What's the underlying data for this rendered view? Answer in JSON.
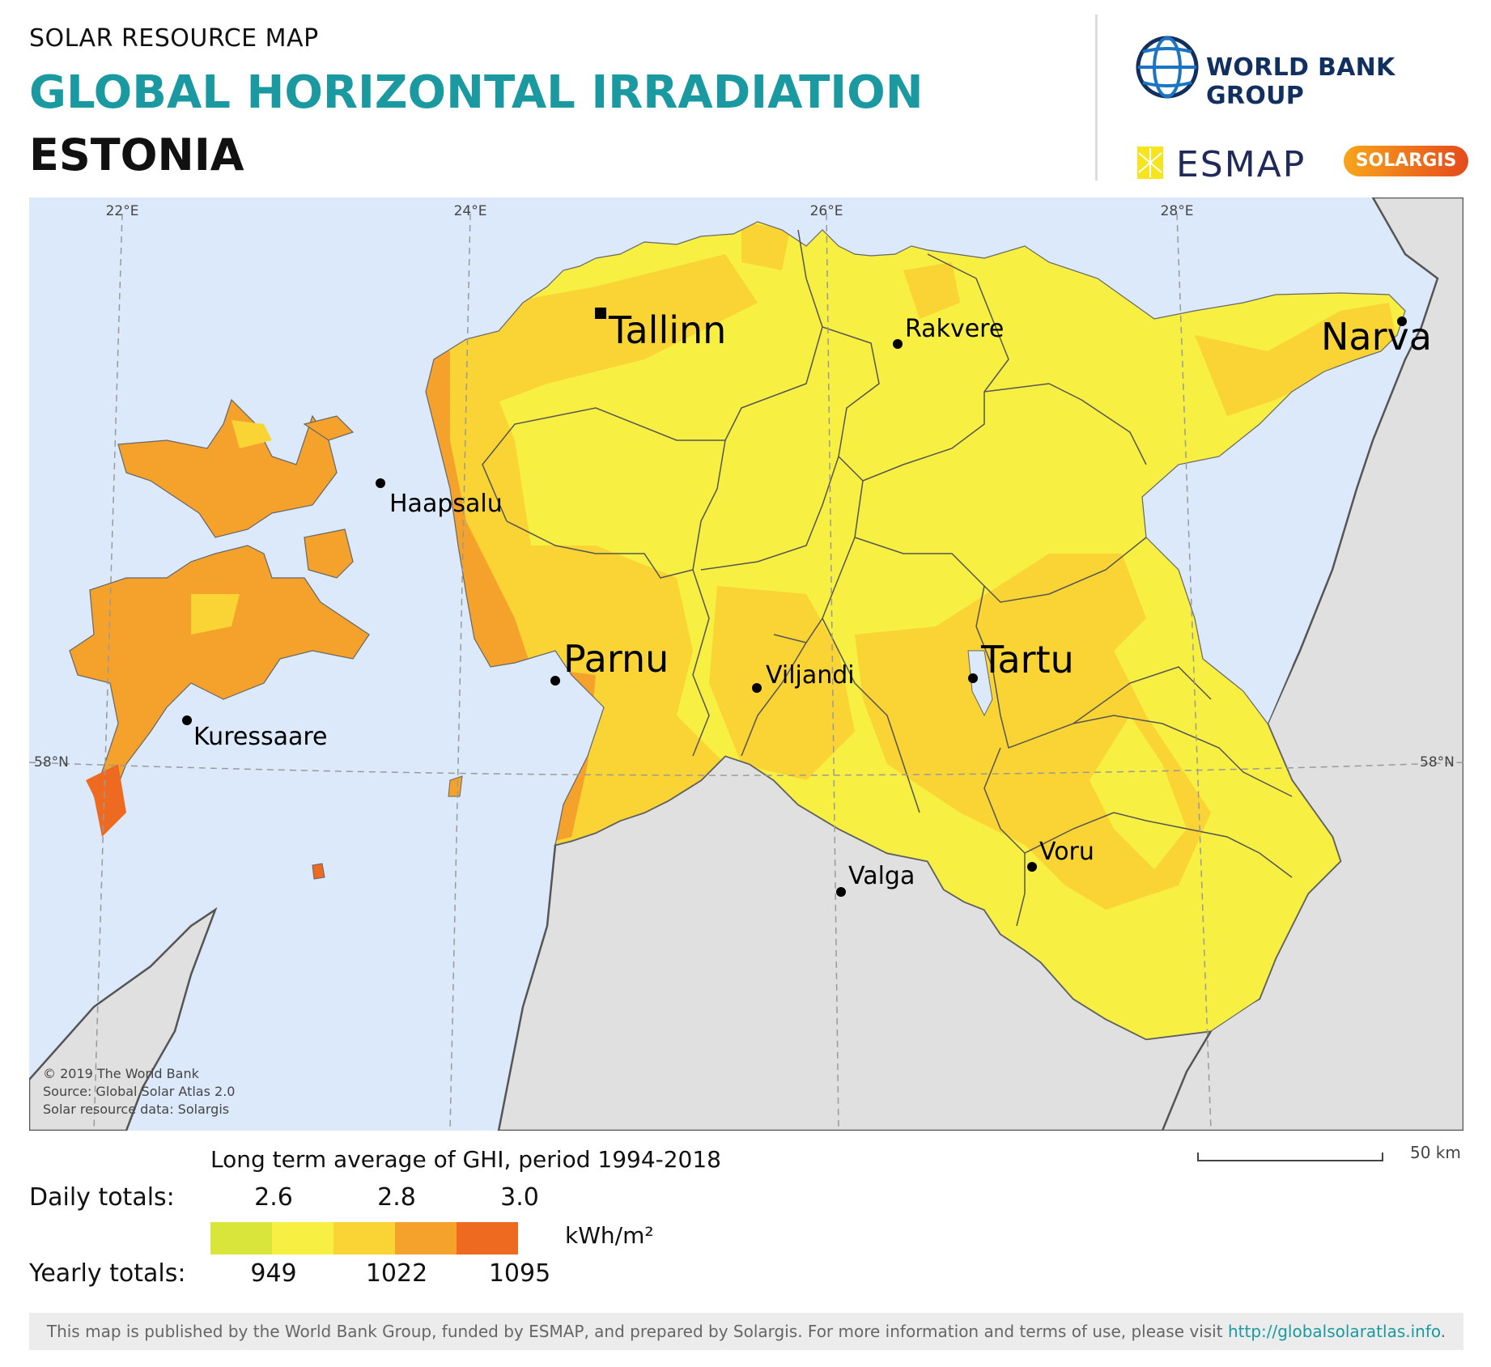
{
  "header": {
    "kicker": "SOLAR RESOURCE MAP",
    "title": "GLOBAL HORIZONTAL IRRADIATION",
    "country": "ESTONIA"
  },
  "logos": {
    "world_bank": "WORLD BANK GROUP",
    "esmap": "ESMAP",
    "solargis": "SOLARGIS"
  },
  "map": {
    "graticule": {
      "longitudes": [
        "22°E",
        "24°E",
        "26°E",
        "28°E"
      ],
      "latitude_left": "58°N",
      "latitude_right": "58°N"
    },
    "cities": {
      "tallinn": "Tallinn",
      "narva": "Narva",
      "rakvere": "Rakvere",
      "haapsalu": "Haapsalu",
      "parnu": "Parnu",
      "viljandi": "Viljandi",
      "tartu": "Tartu",
      "kuressaare": "Kuressaare",
      "valga": "Valga",
      "voru": "Voru"
    },
    "colors": {
      "sea": "#dbe9fa",
      "neighbor_land": "#e0e0e0",
      "class_1": "#d9e53a",
      "class_2": "#f7ef42",
      "class_3": "#f9d434",
      "class_4": "#f4a22b",
      "class_5": "#ee6a21"
    }
  },
  "credits": {
    "line1": "© 2019 The World Bank",
    "line2": "Source: Global Solar Atlas 2.0",
    "line3": "Solar resource data: Solargis"
  },
  "legend": {
    "title": "Long term average of GHI, period 1994-2018",
    "daily_label": "Daily totals:",
    "yearly_label": "Yearly totals:",
    "daily_ticks": [
      "2.6",
      "2.8",
      "3.0"
    ],
    "yearly_ticks": [
      "949",
      "1022",
      "1095"
    ],
    "unit": "kWh/m²",
    "colors": [
      "#d9e53a",
      "#f7ef42",
      "#f9d434",
      "#f4a22b",
      "#ee6a21"
    ]
  },
  "scale_bar": {
    "label": "50 km"
  },
  "footer": {
    "text": "This map is published by the World Bank Group, funded by ESMAP, and prepared by Solargis. For more information and terms of use, please visit",
    "link": "http://globalsolaratlas.info",
    "end": "."
  }
}
